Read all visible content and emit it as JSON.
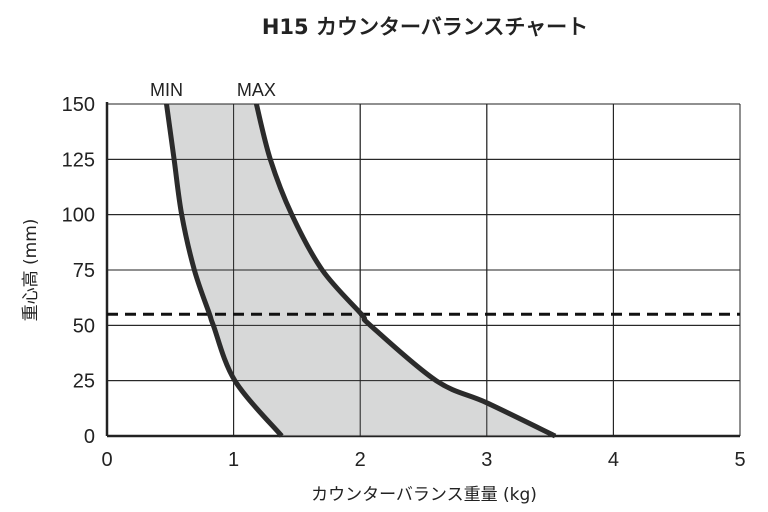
{
  "chart_data": {
    "type": "area",
    "title": "H15 カウンターバランスチャート",
    "xlabel": "カウンターバランス重量 (kg)",
    "ylabel": "重心高 (mm)",
    "xlim": [
      0,
      5
    ],
    "ylim": [
      0,
      150
    ],
    "xticks": [
      "0",
      "1",
      "2",
      "3",
      "4",
      "5"
    ],
    "yticks": [
      "0",
      "25",
      "50",
      "75",
      "100",
      "125",
      "150"
    ],
    "grid": true,
    "fill_color": "#d3d4d4",
    "line_color": "#2b2b2b",
    "series": [
      {
        "name": "MIN",
        "x": [
          1.38,
          1.01,
          0.84,
          0.81,
          0.69,
          0.59,
          0.53,
          0.47
        ],
        "y": [
          0,
          25,
          50,
          55,
          75,
          100,
          125,
          150
        ]
      },
      {
        "name": "MAX",
        "x": [
          3.54,
          3.0,
          2.6,
          2.08,
          2.01,
          1.7,
          1.46,
          1.29,
          1.18
        ],
        "y": [
          0,
          15,
          25,
          50,
          55,
          75,
          100,
          125,
          150
        ]
      }
    ],
    "reference_line": {
      "y": 55,
      "style": "dashed"
    }
  }
}
